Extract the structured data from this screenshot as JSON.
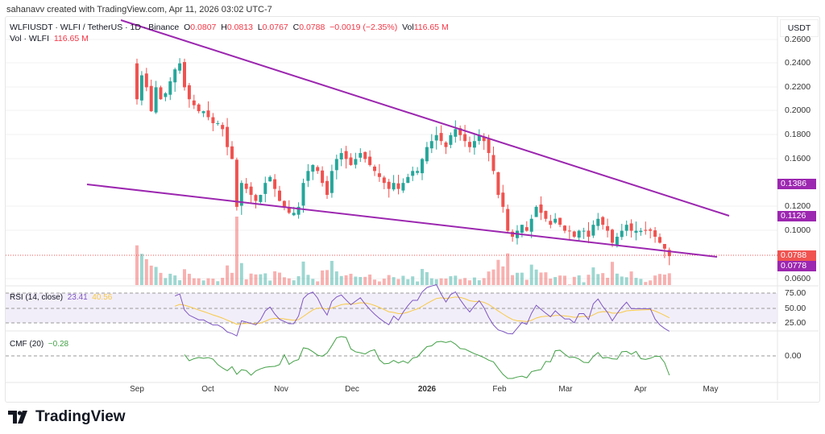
{
  "credit": "sahanavv created with TradingView.com, Apr 11, 2026 03:02 UTC-7",
  "legend": {
    "symbol": "WLFIUSDT · WLFI / TetherUS · 1D · Binance",
    "o_label": "O",
    "o": "0.0807",
    "h_label": "H",
    "h": "0.0813",
    "l_label": "L",
    "l": "0.0767",
    "c_label": "C",
    "c": "0.0788",
    "change": "−0.0019 (−2.35%)",
    "vol_label": "Vol",
    "vol": "116.65 M",
    "vol2_label": "Vol · WLFI",
    "vol2": "116.65 M"
  },
  "axis": {
    "unit": "USDT",
    "ticks": [
      "0.2600",
      "0.2400",
      "0.2200",
      "0.2000",
      "0.1800",
      "0.1600",
      "0.1200",
      "0.1000",
      "0.0600"
    ],
    "tags": {
      "upper": "0.1386",
      "lower_mid": "0.1126",
      "last": "0.0788",
      "lower": "0.0778"
    },
    "rsi_ticks": [
      "75.00",
      "50.00",
      "25.00"
    ],
    "cmf_ticks": [
      "0.00"
    ]
  },
  "time_axis": [
    "Sep",
    "Oct",
    "Nov",
    "Dec",
    "2026",
    "Feb",
    "Mar",
    "Apr",
    "May"
  ],
  "rsi": {
    "label": "RSI (14, close)",
    "value": "23.41",
    "ma": "40.56"
  },
  "cmf": {
    "label": "CMF (20)",
    "value": "−0.28"
  },
  "logo": "TradingView",
  "colors": {
    "up": "#26a69a",
    "down": "#ef5350",
    "trend": "#9c27b0",
    "rsi": "#7e57c2",
    "rsi_ma": "#f7c948",
    "cmf": "#43a047"
  },
  "chart_data": {
    "type": "candlestick",
    "interval_days": 2,
    "start": "Sep 1 2025",
    "closes": [
      0.21,
      0.23,
      0.22,
      0.2,
      0.22,
      0.21,
      0.215,
      0.225,
      0.235,
      0.24,
      0.22,
      0.21,
      0.205,
      0.2,
      0.2,
      0.195,
      0.19,
      0.19,
      0.185,
      0.17,
      0.16,
      0.12,
      0.14,
      0.135,
      0.13,
      0.125,
      0.13,
      0.14,
      0.145,
      0.135,
      0.125,
      0.12,
      0.115,
      0.115,
      0.12,
      0.14,
      0.15,
      0.155,
      0.15,
      0.14,
      0.13,
      0.15,
      0.16,
      0.165,
      0.16,
      0.155,
      0.16,
      0.165,
      0.16,
      0.155,
      0.15,
      0.145,
      0.14,
      0.135,
      0.14,
      0.135,
      0.14,
      0.145,
      0.15,
      0.15,
      0.16,
      0.17,
      0.175,
      0.18,
      0.175,
      0.17,
      0.18,
      0.185,
      0.18,
      0.175,
      0.17,
      0.175,
      0.18,
      0.175,
      0.165,
      0.15,
      0.13,
      0.12,
      0.1,
      0.095,
      0.1,
      0.105,
      0.1,
      0.11,
      0.12,
      0.115,
      0.11,
      0.105,
      0.11,
      0.105,
      0.1,
      0.1,
      0.095,
      0.1,
      0.1,
      0.095,
      0.105,
      0.11,
      0.105,
      0.1,
      0.09,
      0.095,
      0.1,
      0.105,
      0.1,
      0.1,
      0.1,
      0.1,
      0.1,
      0.095,
      0.09,
      0.085,
      0.0788
    ],
    "trendlines": [
      {
        "name": "upper",
        "start_price": 0.27,
        "end_price": 0.1126
      },
      {
        "name": "lower",
        "start_price": 0.1386,
        "end_price": 0.0778
      }
    ],
    "ylim": [
      0.06,
      0.26
    ]
  }
}
